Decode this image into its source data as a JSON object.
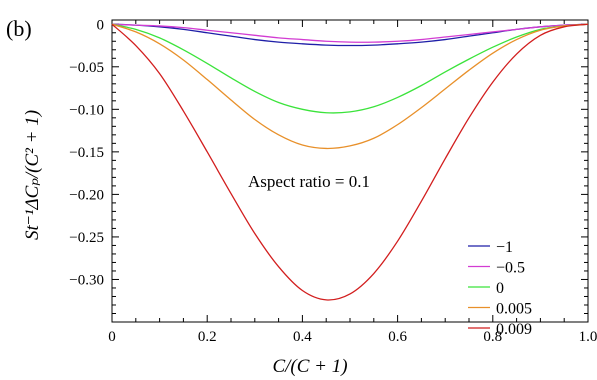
{
  "panel_label": "(b)",
  "chart_data": {
    "type": "line",
    "xlabel": "C/(C + 1)",
    "ylabel": "St⁻¹ΔCₚ/(C² + 1)",
    "xlim": [
      0,
      1.0
    ],
    "ylim": [
      -0.35,
      0.005
    ],
    "xticks": [
      0,
      0.2,
      0.4,
      0.6,
      0.8,
      1.0
    ],
    "xtick_labels": [
      "0",
      "0.2",
      "0.4",
      "0.6",
      "0.8",
      "1.0"
    ],
    "yticks": [
      0,
      -0.05,
      -0.1,
      -0.15,
      -0.2,
      -0.25,
      -0.3
    ],
    "ytick_labels": [
      "0",
      "−0.05",
      "−0.10",
      "−0.15",
      "−0.20",
      "−0.25",
      "−0.30"
    ],
    "grid": false,
    "legend_position": "bottom-right",
    "annotation": "Aspect ratio = 0.1",
    "x": [
      0,
      0.05,
      0.1,
      0.15,
      0.2,
      0.25,
      0.3,
      0.35,
      0.4,
      0.45,
      0.5,
      0.55,
      0.6,
      0.65,
      0.7,
      0.75,
      0.8,
      0.85,
      0.9,
      0.95,
      1.0
    ],
    "series": [
      {
        "name": "−1",
        "color": "#1f1fa8",
        "values": [
          0,
          -0.001,
          -0.003,
          -0.006,
          -0.01,
          -0.014,
          -0.018,
          -0.021,
          -0.023,
          -0.0245,
          -0.025,
          -0.0245,
          -0.023,
          -0.021,
          -0.018,
          -0.014,
          -0.01,
          -0.006,
          -0.003,
          -0.001,
          0
        ]
      },
      {
        "name": "−0.5",
        "color": "#d23cd2",
        "values": [
          0,
          -0.001,
          -0.002,
          -0.004,
          -0.007,
          -0.01,
          -0.013,
          -0.016,
          -0.018,
          -0.02,
          -0.021,
          -0.021,
          -0.02,
          -0.018,
          -0.015,
          -0.012,
          -0.009,
          -0.006,
          -0.003,
          -0.001,
          0
        ]
      },
      {
        "name": "0",
        "color": "#3be33b",
        "values": [
          0,
          -0.006,
          -0.016,
          -0.03,
          -0.046,
          -0.063,
          -0.079,
          -0.092,
          -0.1,
          -0.104,
          -0.103,
          -0.097,
          -0.086,
          -0.072,
          -0.056,
          -0.041,
          -0.027,
          -0.015,
          -0.006,
          -0.002,
          0
        ]
      },
      {
        "name": "0.005",
        "color": "#e8902a",
        "values": [
          0,
          -0.009,
          -0.023,
          -0.042,
          -0.065,
          -0.089,
          -0.112,
          -0.13,
          -0.142,
          -0.146,
          -0.143,
          -0.134,
          -0.118,
          -0.098,
          -0.076,
          -0.054,
          -0.034,
          -0.018,
          -0.007,
          -0.002,
          0
        ]
      },
      {
        "name": "0.009",
        "color": "#d21e1e",
        "values": [
          0,
          -0.025,
          -0.058,
          -0.102,
          -0.15,
          -0.199,
          -0.246,
          -0.285,
          -0.313,
          -0.324,
          -0.317,
          -0.293,
          -0.255,
          -0.208,
          -0.158,
          -0.11,
          -0.068,
          -0.035,
          -0.013,
          -0.003,
          0
        ]
      }
    ]
  }
}
